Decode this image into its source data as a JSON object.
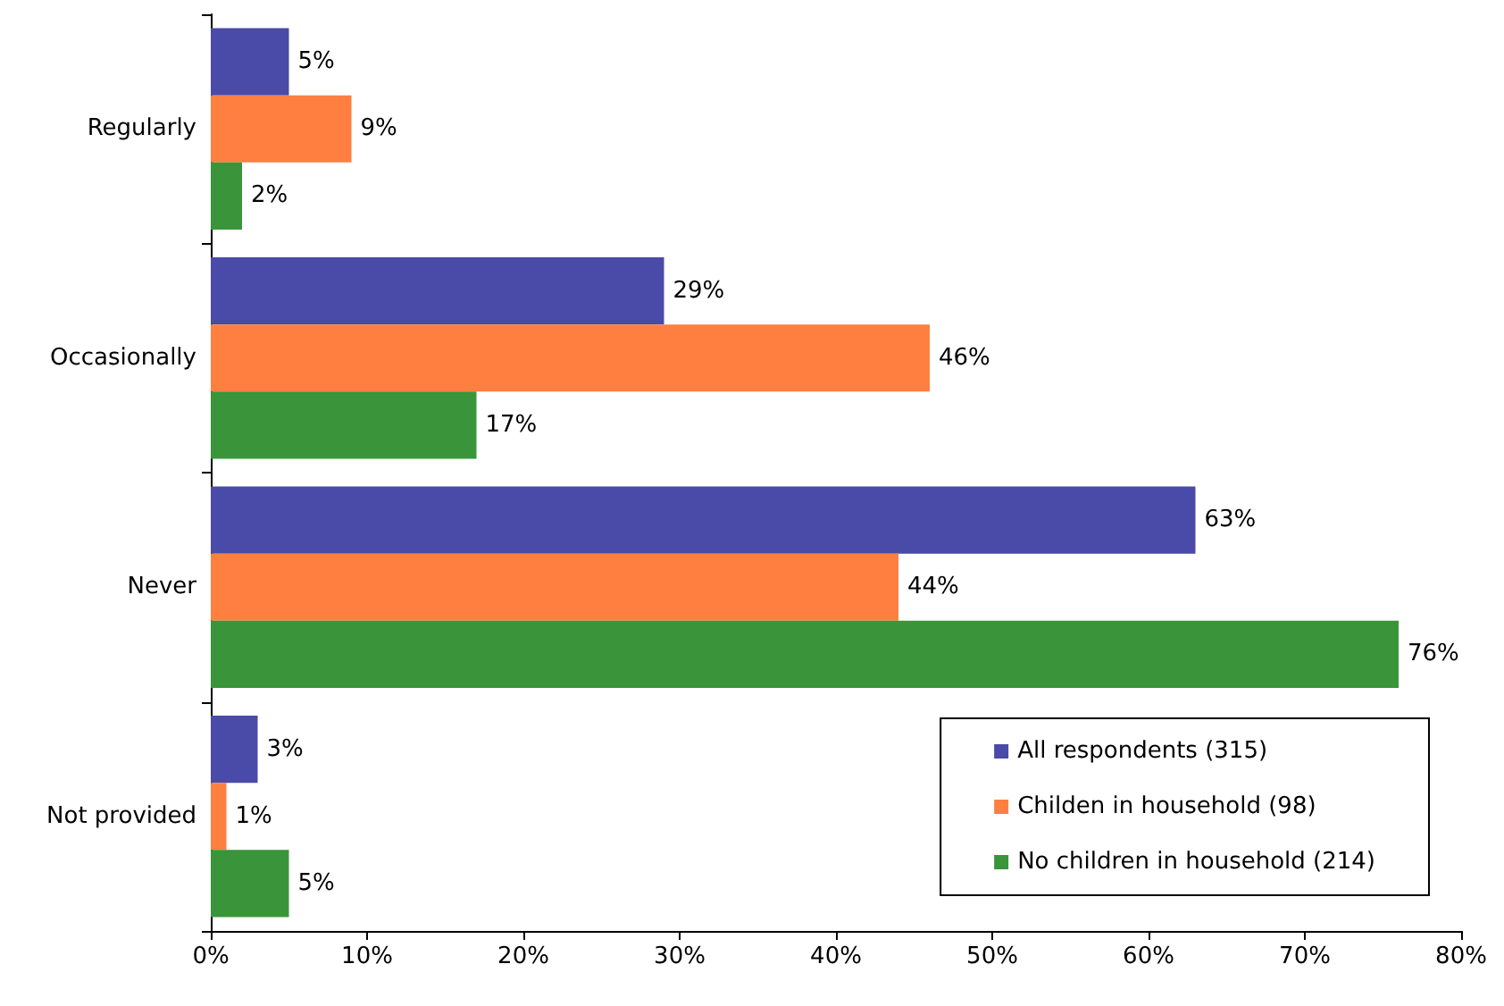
{
  "chart_data": {
    "type": "bar",
    "orientation": "horizontal",
    "categories": [
      "Regularly",
      "Occasionally",
      "Never",
      "Not provided"
    ],
    "series": [
      {
        "name": "All respondents (315)",
        "color": "#4a4aa8",
        "values": [
          5,
          29,
          63,
          3
        ],
        "value_labels": [
          "5%",
          "29%",
          "63%",
          "3%"
        ]
      },
      {
        "name": "Childen in household (98)",
        "color": "#ff7f40",
        "values": [
          9,
          46,
          44,
          1
        ],
        "value_labels": [
          "9%",
          "46%",
          "44%",
          "1%"
        ]
      },
      {
        "name": "No children in household (214)",
        "color": "#3a943a",
        "values": [
          2,
          17,
          76,
          5
        ],
        "value_labels": [
          "2%",
          "17%",
          "76%",
          "5%"
        ]
      }
    ],
    "xlim": [
      0,
      80
    ],
    "xticks": [
      {
        "value": 0,
        "label": "0%"
      },
      {
        "value": 10,
        "label": "10%"
      },
      {
        "value": 20,
        "label": "20%"
      },
      {
        "value": 30,
        "label": "30%"
      },
      {
        "value": 40,
        "label": "40%"
      },
      {
        "value": 50,
        "label": "50%"
      },
      {
        "value": 60,
        "label": "60%"
      },
      {
        "value": 70,
        "label": "70%"
      },
      {
        "value": 80,
        "label": "80%"
      }
    ],
    "grid": false,
    "legend": "bottom right"
  }
}
